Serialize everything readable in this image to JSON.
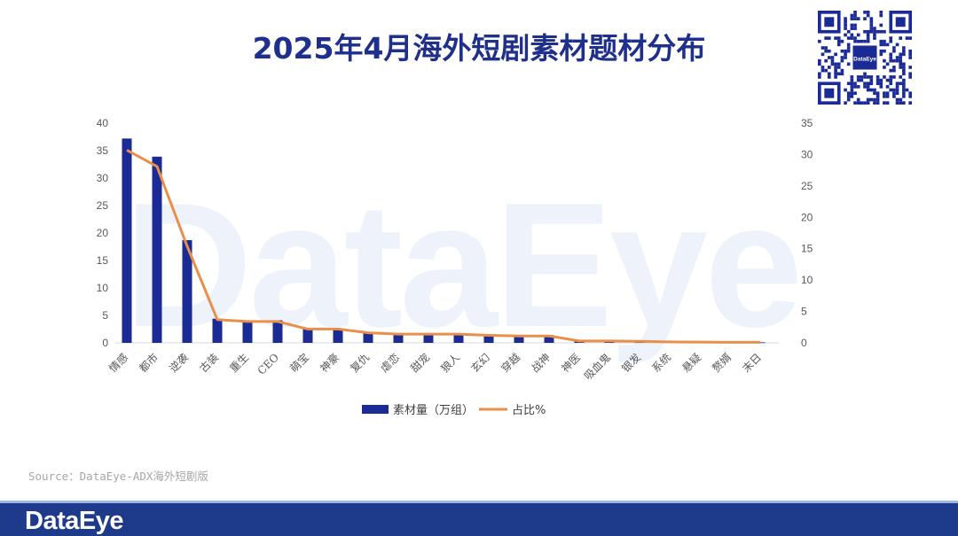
{
  "title": "2025年4月海外短剧素材题材分布",
  "source": "Source：DataEye-ADX海外短剧版",
  "brand": "DataEye",
  "qr_badge": "DataEye",
  "chart_data": {
    "type": "bar+line",
    "categories": [
      "情感",
      "都市",
      "逆袭",
      "古装",
      "重生",
      "CEO",
      "萌宝",
      "神豪",
      "复仇",
      "虐恋",
      "甜宠",
      "狼人",
      "玄幻",
      "穿越",
      "战神",
      "神医",
      "吸血鬼",
      "银发",
      "系统",
      "悬疑",
      "赘婿",
      "末日"
    ],
    "series": [
      {
        "name": "素材量（万组）",
        "type": "bar",
        "axis": "left",
        "color": "#1a2b96",
        "values": [
          37.2,
          33.9,
          18.7,
          4.4,
          4.1,
          4.1,
          2.6,
          2.6,
          1.9,
          1.7,
          1.7,
          1.7,
          1.5,
          1.4,
          1.4,
          0.4,
          0.35,
          0.3,
          0.2,
          0.15,
          0.1,
          0.1
        ]
      },
      {
        "name": "占比%",
        "type": "line",
        "axis": "right",
        "color": "#e8904a",
        "values": [
          30.7,
          28.1,
          15.4,
          3.7,
          3.4,
          3.4,
          2.2,
          2.2,
          1.6,
          1.4,
          1.4,
          1.4,
          1.2,
          1.1,
          1.1,
          0.3,
          0.3,
          0.25,
          0.15,
          0.12,
          0.08,
          0.08
        ]
      }
    ],
    "y_left": {
      "min": 0,
      "max": 40,
      "ticks": [
        0,
        5,
        10,
        15,
        20,
        25,
        30,
        35,
        40
      ]
    },
    "y_right": {
      "min": 0,
      "max": 35,
      "ticks": [
        0,
        5,
        10,
        15,
        20,
        25,
        30,
        35
      ]
    },
    "legend_position": "bottom",
    "grid": false
  }
}
